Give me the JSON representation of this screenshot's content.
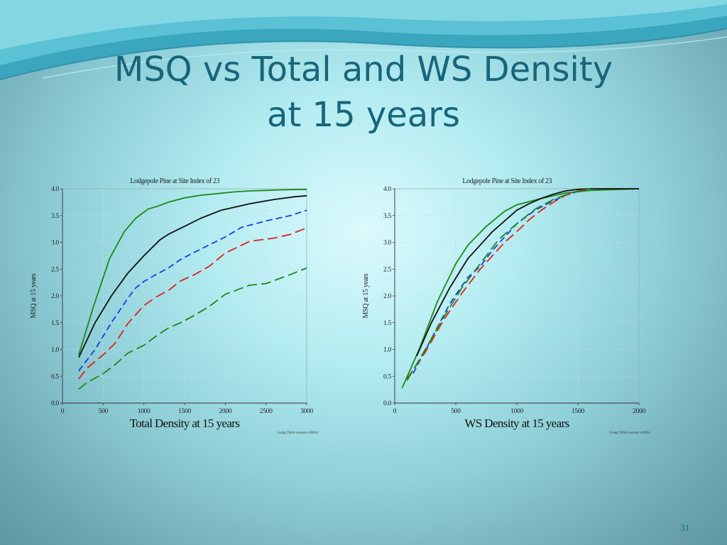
{
  "slide": {
    "title_line1": "MSQ vs Total and WS Density",
    "title_line2": "at 15 years",
    "page_number": "31"
  },
  "colors": {
    "title": "#17657a",
    "series": [
      "#1a8a1a",
      "#111111",
      "#1a3fe0",
      "#e0201a",
      "#1a8a1a"
    ],
    "grid": "#c8dcd8"
  },
  "chart_data": [
    {
      "type": "line",
      "title": "Lodgepole Pine at Site Index of 23",
      "xlabel": "Total Density at 15 years",
      "ylabel": "MSQ at 15 years",
      "footnote": "Using TASS version v20024",
      "xlim": [
        0,
        3000
      ],
      "ylim": [
        0,
        4.0
      ],
      "xticks": [
        0,
        500,
        1000,
        1500,
        2000,
        2500,
        3000
      ],
      "yticks": [
        0,
        0.5,
        1.0,
        1.5,
        2.0,
        2.5,
        3.0,
        3.5,
        4.0
      ],
      "grid": true,
      "series": [
        {
          "color": "#1a8a1a",
          "dash": "solid",
          "x": [
            200,
            380,
            580,
            760,
            900,
            1050,
            1180,
            1300,
            1500,
            1700,
            1900,
            2100,
            2300,
            2500,
            2700,
            3000
          ],
          "y": [
            0.9,
            1.8,
            2.7,
            3.2,
            3.45,
            3.62,
            3.68,
            3.75,
            3.83,
            3.88,
            3.91,
            3.94,
            3.96,
            3.97,
            3.98,
            3.99
          ]
        },
        {
          "color": "#111111",
          "dash": "solid",
          "x": [
            200,
            400,
            600,
            800,
            1000,
            1200,
            1300,
            1500,
            1700,
            1950,
            2300,
            2600,
            2850,
            3000
          ],
          "y": [
            0.85,
            1.5,
            2.0,
            2.42,
            2.75,
            3.05,
            3.15,
            3.3,
            3.45,
            3.6,
            3.72,
            3.8,
            3.85,
            3.87
          ]
        },
        {
          "color": "#1a3fe0",
          "dash": "dash",
          "x": [
            200,
            400,
            600,
            800,
            900,
            1000,
            1150,
            1300,
            1450,
            1600,
            1800,
            2000,
            2200,
            2500,
            2800,
            3000
          ],
          "y": [
            0.6,
            1.0,
            1.5,
            1.95,
            2.15,
            2.27,
            2.4,
            2.52,
            2.68,
            2.8,
            2.95,
            3.1,
            3.28,
            3.4,
            3.5,
            3.6
          ]
        },
        {
          "color": "#e0201a",
          "dash": "longdash",
          "x": [
            200,
            300,
            500,
            650,
            800,
            1000,
            1150,
            1300,
            1450,
            1600,
            1800,
            2000,
            2300,
            2600,
            2800,
            3000
          ],
          "y": [
            0.45,
            0.65,
            0.9,
            1.12,
            1.48,
            1.82,
            1.98,
            2.1,
            2.28,
            2.38,
            2.55,
            2.8,
            3.02,
            3.08,
            3.15,
            3.27
          ]
        },
        {
          "color": "#1a8a1a",
          "dash": "longdash",
          "x": [
            200,
            300,
            500,
            650,
            800,
            1000,
            1150,
            1300,
            1450,
            1600,
            1800,
            2000,
            2300,
            2500,
            2800,
            3000
          ],
          "y": [
            0.26,
            0.38,
            0.55,
            0.72,
            0.93,
            1.08,
            1.25,
            1.4,
            1.5,
            1.62,
            1.8,
            2.03,
            2.2,
            2.23,
            2.4,
            2.52
          ]
        }
      ]
    },
    {
      "type": "line",
      "title": "Lodgepole Pine at Site Index of 23",
      "xlabel": "WS Density at 15 years",
      "ylabel": "MSQ at 15 years",
      "footnote": "Using TASS version v20024",
      "xlim": [
        0,
        2000
      ],
      "ylim": [
        0,
        4.0
      ],
      "xticks": [
        0,
        500,
        1000,
        1500,
        2000
      ],
      "yticks": [
        0,
        0.5,
        1.0,
        1.5,
        2.0,
        2.5,
        3.0,
        3.5,
        4.0
      ],
      "grid": true,
      "series": [
        {
          "color": "#1a8a1a",
          "dash": "solid",
          "x": [
            60,
            200,
            350,
            500,
            600,
            750,
            900,
            1000,
            1200,
            1400,
            1600,
            2000
          ],
          "y": [
            0.28,
            1.0,
            1.9,
            2.6,
            2.95,
            3.3,
            3.58,
            3.7,
            3.82,
            3.92,
            3.97,
            4.0
          ]
        },
        {
          "color": "#111111",
          "dash": "solid",
          "x": [
            180,
            300,
            450,
            600,
            700,
            800,
            900,
            1000,
            1100,
            1200,
            1300,
            1400,
            1500,
            1600,
            2000
          ],
          "y": [
            0.88,
            1.5,
            2.15,
            2.7,
            2.95,
            3.2,
            3.4,
            3.6,
            3.72,
            3.82,
            3.9,
            3.96,
            3.99,
            4.0,
            4.0
          ]
        },
        {
          "color": "#1a3fe0",
          "dash": "dash",
          "x": [
            150,
            300,
            450,
            600,
            700,
            800,
            900,
            1000,
            1150,
            1300,
            1400,
            1500,
            1600
          ],
          "y": [
            0.55,
            1.2,
            1.85,
            2.35,
            2.55,
            2.85,
            3.1,
            3.35,
            3.6,
            3.78,
            3.88,
            3.95,
            4.0
          ]
        },
        {
          "color": "#e0201a",
          "dash": "longdash",
          "x": [
            100,
            250,
            400,
            550,
            700,
            800,
            900,
            1000,
            1100,
            1200,
            1300,
            1400,
            1500,
            1600
          ],
          "y": [
            0.45,
            0.95,
            1.55,
            2.05,
            2.5,
            2.75,
            3.0,
            3.2,
            3.42,
            3.6,
            3.75,
            3.88,
            3.96,
            4.0
          ]
        },
        {
          "color": "#1a8a1a",
          "dash": "longdash",
          "x": [
            100,
            250,
            400,
            550,
            700,
            850,
            1000,
            1150,
            1300,
            1450,
            1600
          ],
          "y": [
            0.42,
            1.0,
            1.6,
            2.15,
            2.6,
            3.05,
            3.35,
            3.62,
            3.8,
            3.93,
            4.0
          ]
        }
      ]
    }
  ]
}
